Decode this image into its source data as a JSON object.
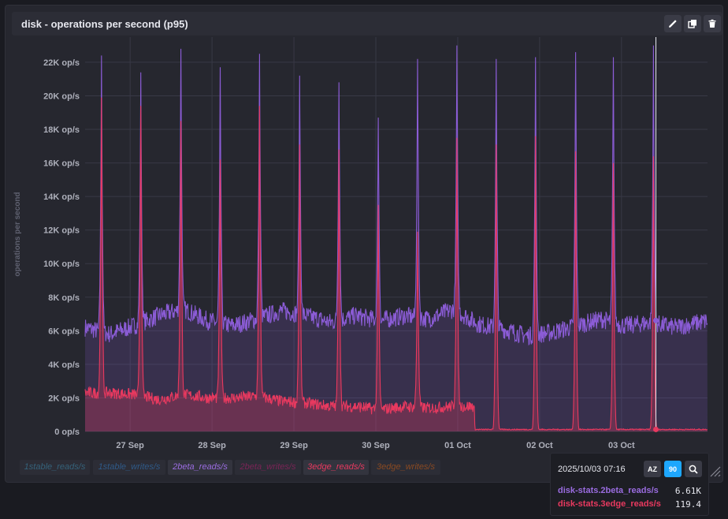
{
  "panel": {
    "title": "disk - operations per second (p95)",
    "actions": {
      "edit_icon": "pencil-icon",
      "clone_icon": "clone-icon",
      "delete_icon": "trash-icon"
    }
  },
  "chart_data": {
    "type": "line",
    "ylabel": "operations per second",
    "y_unit": "op/s",
    "ylim": [
      0,
      23500
    ],
    "yticks": [
      0,
      2000,
      4000,
      6000,
      8000,
      10000,
      12000,
      14000,
      16000,
      18000,
      20000,
      22000
    ],
    "ytick_labels": [
      "0 op/s",
      "2K op/s",
      "4K op/s",
      "6K op/s",
      "8K op/s",
      "10K op/s",
      "12K op/s",
      "14K op/s",
      "16K op/s",
      "18K op/s",
      "20K op/s",
      "22K op/s"
    ],
    "xlim": [
      0,
      7.6
    ],
    "xticks": [
      0.55,
      1.55,
      2.55,
      3.55,
      4.55,
      5.55,
      6.55
    ],
    "xtick_labels": [
      "27 Sep",
      "28 Sep",
      "29 Sep",
      "30 Sep",
      "01 Oct",
      "02 Oct",
      "03 Oct"
    ],
    "grid": true,
    "legend_placement": "bottom-left",
    "series": [
      {
        "name": "2beta_reads/s",
        "full_name": "disk-stats.2beta_reads/s",
        "color": "#8b5cd6",
        "baseline": [
          [
            0,
            6200
          ],
          [
            0.3,
            5800
          ],
          [
            0.6,
            6300
          ],
          [
            0.9,
            6900
          ],
          [
            1.2,
            7300
          ],
          [
            1.5,
            6600
          ],
          [
            1.8,
            6300
          ],
          [
            2.1,
            6700
          ],
          [
            2.4,
            7200
          ],
          [
            2.7,
            6900
          ],
          [
            3.0,
            6500
          ],
          [
            3.3,
            6900
          ],
          [
            3.6,
            6600
          ],
          [
            3.9,
            6900
          ],
          [
            4.2,
            6700
          ],
          [
            4.5,
            7300
          ],
          [
            4.8,
            6400
          ],
          [
            5.1,
            6100
          ],
          [
            5.4,
            5700
          ],
          [
            5.7,
            5900
          ],
          [
            6.0,
            6300
          ],
          [
            6.3,
            6700
          ],
          [
            6.6,
            6300
          ],
          [
            6.9,
            6500
          ],
          [
            7.2,
            6200
          ],
          [
            7.6,
            6600
          ]
        ],
        "spikes": [
          [
            0.2,
            22400
          ],
          [
            0.68,
            21400
          ],
          [
            1.17,
            22800
          ],
          [
            1.65,
            21700
          ],
          [
            2.13,
            22500
          ],
          [
            2.62,
            21200
          ],
          [
            3.1,
            20800
          ],
          [
            3.58,
            18700
          ],
          [
            4.06,
            22200
          ],
          [
            4.54,
            23000
          ],
          [
            5.02,
            22200
          ],
          [
            5.5,
            22300
          ],
          [
            5.99,
            22600
          ],
          [
            6.45,
            22300
          ],
          [
            6.94,
            23000
          ]
        ],
        "hover_value": 6610
      },
      {
        "name": "3edge_reads/s",
        "full_name": "disk-stats.3edge_reads/s",
        "color": "#e8395f",
        "baseline": [
          [
            0,
            2300
          ],
          [
            0.3,
            2300
          ],
          [
            0.6,
            2200
          ],
          [
            0.9,
            1900
          ],
          [
            1.2,
            2200
          ],
          [
            1.5,
            2000
          ],
          [
            1.8,
            2000
          ],
          [
            2.1,
            2100
          ],
          [
            2.4,
            1800
          ],
          [
            2.7,
            1700
          ],
          [
            3.0,
            1500
          ],
          [
            3.3,
            1500
          ],
          [
            3.6,
            1300
          ],
          [
            3.9,
            1500
          ],
          [
            4.2,
            1400
          ],
          [
            4.5,
            1500
          ],
          [
            4.75,
            1500
          ],
          [
            4.76,
            120
          ],
          [
            5.0,
            120
          ],
          [
            5.5,
            120
          ],
          [
            6.0,
            120
          ],
          [
            6.5,
            120
          ],
          [
            7.0,
            120
          ],
          [
            7.6,
            120
          ]
        ],
        "spikes": [
          [
            0.2,
            19900
          ],
          [
            0.68,
            19400
          ],
          [
            1.17,
            18500
          ],
          [
            1.65,
            16200
          ],
          [
            2.13,
            19400
          ],
          [
            2.62,
            17100
          ],
          [
            3.1,
            16800
          ],
          [
            3.58,
            13500
          ],
          [
            4.06,
            11900
          ],
          [
            4.54,
            17500
          ],
          [
            5.02,
            17100
          ],
          [
            5.5,
            17600
          ],
          [
            5.99,
            16700
          ],
          [
            6.45,
            16000
          ],
          [
            6.94,
            16400
          ]
        ],
        "hover_value": 119.4
      }
    ],
    "hover": {
      "time": "2025/10/03 07:16",
      "x": 6.97
    }
  },
  "legend": [
    {
      "label": "1stable_reads/s",
      "active": false
    },
    {
      "label": "1stable_writes/s",
      "active": false
    },
    {
      "label": "2beta_reads/s",
      "active": true
    },
    {
      "label": "2beta_writes/s",
      "active": false
    },
    {
      "label": "3edge_reads/s",
      "active": true
    },
    {
      "label": "3edge_writes/s",
      "active": false
    }
  ],
  "tooltip": {
    "time": "2025/10/03 07:16",
    "sort_alpha_label": "AZ",
    "sort_numeric_label": "90",
    "search_icon": "search-icon",
    "rows": [
      {
        "name": "disk-stats.2beta_reads/s",
        "value": "6.61K"
      },
      {
        "name": "disk-stats.3edge_reads/s",
        "value": "119.4"
      }
    ]
  },
  "colors": {
    "legend_1stable_reads": "#35627a",
    "legend_1stable_writes": "#2f5a88",
    "legend_2beta_reads": "#9a6ce0",
    "legend_2beta_writes": "#7a2456",
    "legend_3edge_reads": "#e8395f",
    "legend_3edge_writes": "#8a4a22",
    "accent_blue": "#1ea7fd"
  }
}
